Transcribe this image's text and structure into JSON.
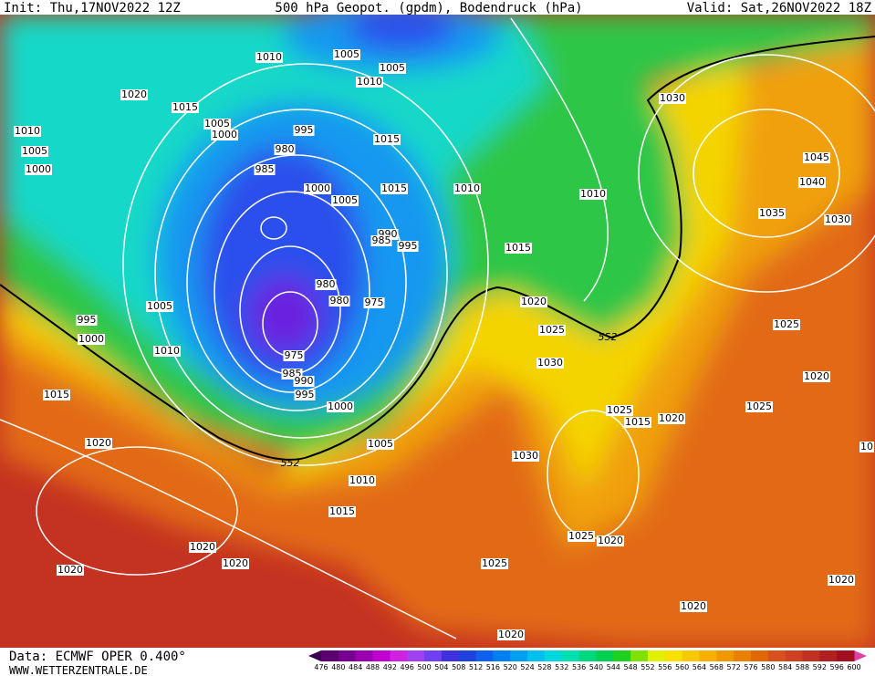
{
  "header": {
    "init": "Init: Thu,17NOV2022 12Z",
    "title": "500 hPa Geopot. (gpdm), Bodendruck (hPa)",
    "valid": "Valid: Sat,26NOV2022 18Z"
  },
  "footer": {
    "data": "Data: ECMWF OPER 0.400°",
    "site": "WWW.WETTERZENTRALE.DE"
  },
  "colorbar": {
    "levels": [
      476,
      480,
      484,
      488,
      492,
      496,
      500,
      504,
      508,
      512,
      516,
      520,
      524,
      528,
      532,
      536,
      540,
      544,
      548,
      552,
      556,
      560,
      564,
      568,
      572,
      576,
      580,
      584,
      588,
      592,
      596,
      600
    ]
  },
  "isobar_labels": [
    1010,
    1005,
    1005,
    1010,
    1020,
    1015,
    1005,
    1000,
    995,
    1010,
    1005,
    1000,
    980,
    985,
    1015,
    1000,
    1005,
    1015,
    1010,
    1010,
    990,
    985,
    995,
    1015,
    980,
    980,
    975,
    1005,
    995,
    1000,
    1010,
    1020,
    1025,
    552,
    975,
    985,
    990,
    995,
    1000,
    1030,
    1015,
    1025,
    1015,
    1020,
    1025,
    1020,
    1025,
    1030,
    1045,
    1040,
    1035,
    1030,
    1020,
    1005,
    552,
    1030,
    1010,
    1015,
    1020,
    1020,
    1020,
    1025,
    1020,
    1025,
    1020,
    1020,
    1020,
    10
  ]
}
